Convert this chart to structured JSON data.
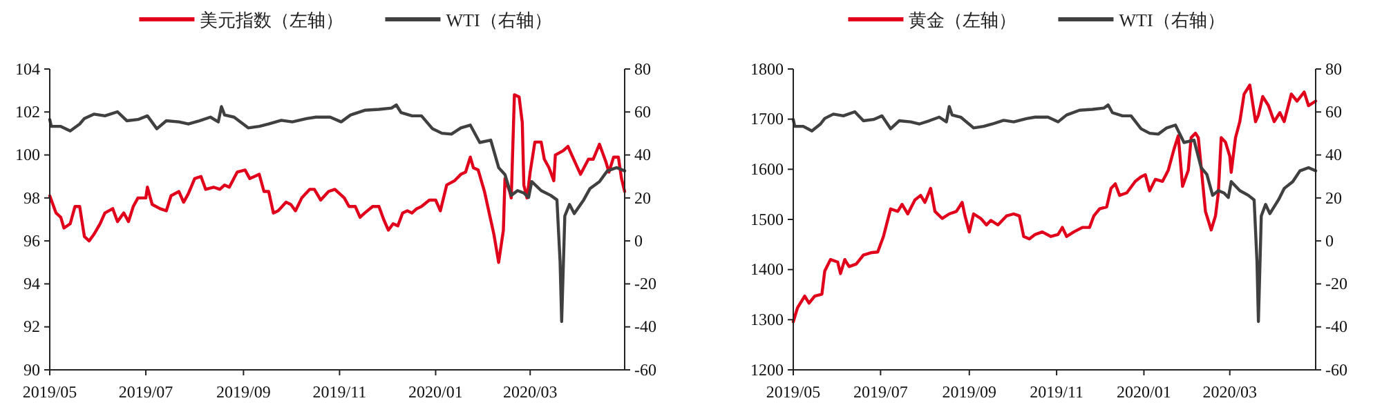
{
  "chart_data": [
    {
      "type": "line",
      "legend": "top",
      "grid": false,
      "xlim": [
        "2019-05-01",
        "2020-04-30"
      ],
      "xticks": [
        {
          "value": "2019-05-01",
          "label": "2019/05"
        },
        {
          "value": "2019-07-01",
          "label": "2019/07"
        },
        {
          "value": "2019-09-01",
          "label": "2019/09"
        },
        {
          "value": "2019-11-01",
          "label": "2019/11"
        },
        {
          "value": "2020-01-01",
          "label": "2020/01"
        },
        {
          "value": "2020-03-01",
          "label": "2020/03"
        }
      ],
      "ylim": [
        90,
        104
      ],
      "yticks": [
        90,
        92,
        94,
        96,
        98,
        100,
        102,
        104
      ],
      "y2lim": [
        -60,
        80
      ],
      "y2ticks": [
        -60,
        -40,
        -20,
        0,
        20,
        40,
        60,
        80
      ],
      "series": [
        {
          "name": "美元指数（左轴）",
          "color": "#e0001b",
          "x": [
            "2019-05-01",
            "2019-05-05",
            "2019-05-08",
            "2019-05-10",
            "2019-05-14",
            "2019-05-17",
            "2019-05-20",
            "2019-05-23",
            "2019-05-26",
            "2019-05-29",
            "2019-06-02",
            "2019-06-05",
            "2019-06-10",
            "2019-06-13",
            "2019-06-17",
            "2019-06-20",
            "2019-06-23",
            "2019-06-26",
            "2019-07-01",
            "2019-07-02",
            "2019-07-05",
            "2019-07-10",
            "2019-07-14",
            "2019-07-17",
            "2019-07-22",
            "2019-07-25",
            "2019-07-28",
            "2019-08-01",
            "2019-08-05",
            "2019-08-08",
            "2019-08-13",
            "2019-08-17",
            "2019-08-20",
            "2019-08-23",
            "2019-08-28",
            "2019-09-02",
            "2019-09-05",
            "2019-09-08",
            "2019-09-11",
            "2019-09-14",
            "2019-09-17",
            "2019-09-20",
            "2019-09-23",
            "2019-09-28",
            "2019-10-01",
            "2019-10-04",
            "2019-10-08",
            "2019-10-13",
            "2019-10-16",
            "2019-10-20",
            "2019-10-25",
            "2019-10-29",
            "2019-11-04",
            "2019-11-07",
            "2019-11-11",
            "2019-11-14",
            "2019-11-17",
            "2019-11-22",
            "2019-11-26",
            "2019-11-29",
            "2019-12-02",
            "2019-12-05",
            "2019-12-08",
            "2019-12-11",
            "2019-12-14",
            "2019-12-17",
            "2019-12-20",
            "2019-12-23",
            "2019-12-28",
            "2020-01-01",
            "2020-01-04",
            "2020-01-08",
            "2020-01-13",
            "2020-01-17",
            "2020-01-20",
            "2020-01-23",
            "2020-01-25",
            "2020-01-28",
            "2020-02-01",
            "2020-02-04",
            "2020-02-07",
            "2020-02-10",
            "2020-02-13",
            "2020-02-14",
            "2020-02-17",
            "2020-02-18",
            "2020-02-20",
            "2020-02-23",
            "2020-02-25",
            "2020-02-26",
            "2020-02-28",
            "2020-03-01",
            "2020-03-04",
            "2020-03-08",
            "2020-03-10",
            "2020-03-13",
            "2020-03-16",
            "2020-03-17",
            "2020-03-22",
            "2020-03-25",
            "2020-03-28",
            "2020-04-02",
            "2020-04-07",
            "2020-04-10",
            "2020-04-14",
            "2020-04-18",
            "2020-04-20",
            "2020-04-23",
            "2020-04-26",
            "2020-04-28",
            "2020-04-30"
          ],
          "values": [
            98.1,
            97.3,
            97.1,
            96.6,
            96.8,
            97.6,
            97.6,
            96.2,
            96.0,
            96.3,
            96.8,
            97.3,
            97.5,
            96.9,
            97.3,
            96.9,
            97.6,
            98.0,
            98.0,
            98.5,
            97.7,
            97.5,
            97.4,
            98.1,
            98.3,
            97.8,
            98.2,
            98.9,
            99.0,
            98.4,
            98.5,
            98.4,
            98.6,
            98.5,
            99.2,
            99.3,
            98.9,
            99.0,
            99.1,
            98.3,
            98.3,
            97.3,
            97.4,
            97.8,
            97.7,
            97.4,
            98.0,
            98.4,
            98.4,
            97.9,
            98.3,
            98.4,
            98.0,
            97.6,
            97.6,
            97.1,
            97.3,
            97.6,
            97.6,
            97.0,
            96.5,
            96.8,
            96.7,
            97.3,
            97.4,
            97.3,
            97.5,
            97.6,
            97.9,
            97.9,
            97.4,
            98.6,
            98.8,
            99.1,
            99.2,
            99.9,
            99.4,
            99.3,
            98.3,
            97.3,
            96.3,
            95.0,
            96.5,
            98.9,
            98.3,
            98.0,
            102.8,
            102.7,
            101.5,
            98.6,
            98.0,
            99.2,
            100.6,
            100.6,
            99.8,
            99.4,
            98.8,
            100.0,
            100.2,
            100.4,
            99.9,
            99.1,
            99.8,
            99.8,
            100.5,
            99.7,
            99.2,
            99.9,
            99.9,
            98.9,
            98.3
          ]
        },
        {
          "name": "WTI（右轴）",
          "color": "#404040",
          "axis": "y2",
          "x": [
            "2019-05-01",
            "2019-05-02",
            "2019-05-08",
            "2019-05-14",
            "2019-05-20",
            "2019-05-23",
            "2019-05-29",
            "2019-06-05",
            "2019-06-13",
            "2019-06-19",
            "2019-06-26",
            "2019-07-02",
            "2019-07-08",
            "2019-07-14",
            "2019-07-22",
            "2019-07-28",
            "2019-08-04",
            "2019-08-11",
            "2019-08-16",
            "2019-08-18",
            "2019-08-20",
            "2019-08-26",
            "2019-09-04",
            "2019-09-11",
            "2019-09-17",
            "2019-09-25",
            "2019-10-02",
            "2019-10-11",
            "2019-10-17",
            "2019-10-26",
            "2019-11-02",
            "2019-11-08",
            "2019-11-17",
            "2019-11-26",
            "2019-12-04",
            "2019-12-07",
            "2019-12-10",
            "2019-12-17",
            "2019-12-23",
            "2019-12-30",
            "2020-01-05",
            "2020-01-11",
            "2020-01-17",
            "2020-01-23",
            "2020-01-29",
            "2020-02-05",
            "2020-02-10",
            "2020-02-14",
            "2020-02-18",
            "2020-02-22",
            "2020-02-26",
            "2020-02-29",
            "2020-03-02",
            "2020-03-08",
            "2020-03-14",
            "2020-03-18",
            "2020-03-20",
            "2020-03-21",
            "2020-03-23",
            "2020-03-26",
            "2020-03-29",
            "2020-04-04",
            "2020-04-08",
            "2020-04-14",
            "2020-04-19",
            "2020-04-25",
            "2020-04-30"
          ],
          "values": [
            56.5,
            53.3,
            53.3,
            51.2,
            54.4,
            57,
            59,
            58.2,
            60.1,
            55.9,
            56.5,
            58.2,
            52.2,
            55.9,
            55.4,
            54.4,
            55.9,
            57.6,
            55.4,
            62.5,
            58.6,
            57.6,
            52.6,
            53.3,
            54.4,
            56.1,
            55.4,
            56.9,
            57.6,
            57.6,
            55.4,
            58.6,
            60.8,
            61.2,
            61.8,
            63.3,
            59.7,
            58.2,
            58.2,
            52.2,
            50.1,
            49.7,
            52.6,
            53.9,
            45.8,
            46.9,
            34.1,
            30.9,
            21.2,
            23.4,
            22.3,
            20.2,
            27.6,
            23.4,
            21.2,
            19.1,
            -9.7,
            -37.5,
            11.6,
            17.0,
            12.7,
            19.1,
            24.4,
            27.6,
            32.6,
            34.1,
            32.6
          ]
        }
      ]
    },
    {
      "type": "line",
      "legend": "top",
      "grid": false,
      "xlim": [
        "2019-05-01",
        "2020-04-30"
      ],
      "xticks": [
        {
          "value": "2019-05-01",
          "label": "2019/05"
        },
        {
          "value": "2019-07-01",
          "label": "2019/07"
        },
        {
          "value": "2019-09-01",
          "label": "2019/09"
        },
        {
          "value": "2019-11-01",
          "label": "2019/11"
        },
        {
          "value": "2020-01-01",
          "label": "2020/01"
        },
        {
          "value": "2020-03-01",
          "label": "2020/03"
        }
      ],
      "ylim": [
        1200,
        1800
      ],
      "yticks": [
        1200,
        1300,
        1400,
        1500,
        1600,
        1700,
        1800
      ],
      "y2lim": [
        -60,
        80
      ],
      "y2ticks": [
        -60,
        -40,
        -20,
        0,
        20,
        40,
        60,
        80
      ],
      "series": [
        {
          "name": "黄金（左轴）",
          "color": "#e0001b",
          "x": [
            "2019-05-01",
            "2019-05-04",
            "2019-05-09",
            "2019-05-12",
            "2019-05-16",
            "2019-05-21",
            "2019-05-23",
            "2019-05-27",
            "2019-06-01",
            "2019-06-03",
            "2019-06-06",
            "2019-06-09",
            "2019-06-14",
            "2019-06-19",
            "2019-06-25",
            "2019-06-29",
            "2019-07-03",
            "2019-07-08",
            "2019-07-13",
            "2019-07-16",
            "2019-07-20",
            "2019-07-25",
            "2019-07-29",
            "2019-08-01",
            "2019-08-05",
            "2019-08-08",
            "2019-08-13",
            "2019-08-18",
            "2019-08-23",
            "2019-08-27",
            "2019-08-29",
            "2019-09-01",
            "2019-09-04",
            "2019-09-09",
            "2019-09-13",
            "2019-09-16",
            "2019-09-21",
            "2019-09-27",
            "2019-10-02",
            "2019-10-06",
            "2019-10-09",
            "2019-10-13",
            "2019-10-17",
            "2019-10-22",
            "2019-10-28",
            "2019-11-02",
            "2019-11-05",
            "2019-11-08",
            "2019-11-13",
            "2019-11-19",
            "2019-11-24",
            "2019-11-27",
            "2019-12-01",
            "2019-12-06",
            "2019-12-09",
            "2019-12-12",
            "2019-12-15",
            "2019-12-20",
            "2019-12-26",
            "2019-12-30",
            "2020-01-02",
            "2020-01-05",
            "2020-01-09",
            "2020-01-14",
            "2020-01-18",
            "2020-01-22",
            "2020-01-25",
            "2020-01-28",
            "2020-02-01",
            "2020-02-03",
            "2020-02-06",
            "2020-02-08",
            "2020-02-13",
            "2020-02-17",
            "2020-02-20",
            "2020-02-22",
            "2020-02-24",
            "2020-02-27",
            "2020-03-01",
            "2020-03-02",
            "2020-03-05",
            "2020-03-08",
            "2020-03-11",
            "2020-03-15",
            "2020-03-19",
            "2020-03-21",
            "2020-03-24",
            "2020-03-28",
            "2020-04-01",
            "2020-04-05",
            "2020-04-08",
            "2020-04-13",
            "2020-04-17",
            "2020-04-22",
            "2020-04-25",
            "2020-04-30"
          ],
          "values": [
            1296,
            1324,
            1347,
            1333,
            1347,
            1351,
            1397,
            1420,
            1415,
            1392,
            1420,
            1406,
            1411,
            1429,
            1434,
            1435,
            1466,
            1521,
            1516,
            1530,
            1511,
            1539,
            1548,
            1534,
            1562,
            1516,
            1502,
            1511,
            1516,
            1534,
            1507,
            1475,
            1511,
            1502,
            1489,
            1498,
            1489,
            1507,
            1511,
            1507,
            1466,
            1461,
            1470,
            1475,
            1466,
            1470,
            1484,
            1466,
            1475,
            1484,
            1484,
            1507,
            1521,
            1525,
            1562,
            1571,
            1548,
            1553,
            1576,
            1585,
            1589,
            1557,
            1580,
            1576,
            1598,
            1640,
            1667,
            1566,
            1598,
            1663,
            1672,
            1663,
            1516,
            1479,
            1507,
            1553,
            1663,
            1654,
            1626,
            1594,
            1663,
            1695,
            1750,
            1768,
            1695,
            1708,
            1745,
            1727,
            1695,
            1713,
            1695,
            1750,
            1736,
            1754,
            1727,
            1736
          ]
        },
        {
          "name": "WTI（右轴）",
          "color": "#404040",
          "axis": "y2",
          "x": [
            "2019-05-01",
            "2019-05-02",
            "2019-05-08",
            "2019-05-14",
            "2019-05-20",
            "2019-05-23",
            "2019-05-29",
            "2019-06-05",
            "2019-06-13",
            "2019-06-19",
            "2019-06-26",
            "2019-07-02",
            "2019-07-08",
            "2019-07-14",
            "2019-07-22",
            "2019-07-28",
            "2019-08-04",
            "2019-08-11",
            "2019-08-16",
            "2019-08-18",
            "2019-08-20",
            "2019-08-26",
            "2019-09-04",
            "2019-09-11",
            "2019-09-17",
            "2019-09-25",
            "2019-10-02",
            "2019-10-11",
            "2019-10-17",
            "2019-10-26",
            "2019-11-02",
            "2019-11-08",
            "2019-11-17",
            "2019-11-26",
            "2019-12-04",
            "2019-12-07",
            "2019-12-10",
            "2019-12-17",
            "2019-12-23",
            "2019-12-30",
            "2020-01-05",
            "2020-01-11",
            "2020-01-17",
            "2020-01-23",
            "2020-01-29",
            "2020-02-05",
            "2020-02-10",
            "2020-02-14",
            "2020-02-18",
            "2020-02-22",
            "2020-02-26",
            "2020-02-29",
            "2020-03-02",
            "2020-03-08",
            "2020-03-14",
            "2020-03-18",
            "2020-03-20",
            "2020-03-21",
            "2020-03-23",
            "2020-03-26",
            "2020-03-29",
            "2020-04-04",
            "2020-04-08",
            "2020-04-14",
            "2020-04-19",
            "2020-04-25",
            "2020-04-30"
          ],
          "values": [
            56.5,
            53.3,
            53.3,
            51.2,
            54.4,
            57,
            59,
            58.2,
            60.1,
            55.9,
            56.5,
            58.2,
            52.2,
            55.9,
            55.4,
            54.4,
            55.9,
            57.6,
            55.4,
            62.5,
            58.6,
            57.6,
            52.6,
            53.3,
            54.4,
            56.1,
            55.4,
            56.9,
            57.6,
            57.6,
            55.4,
            58.6,
            60.8,
            61.2,
            61.8,
            63.3,
            59.7,
            58.2,
            58.2,
            52.2,
            50.1,
            49.7,
            52.6,
            53.9,
            45.8,
            46.9,
            34.1,
            30.9,
            21.2,
            23.4,
            22.3,
            20.2,
            27.6,
            23.4,
            21.2,
            19.1,
            -9.7,
            -37.5,
            11.6,
            17.0,
            12.7,
            19.1,
            24.4,
            27.6,
            32.6,
            34.1,
            32.6
          ]
        }
      ]
    }
  ]
}
